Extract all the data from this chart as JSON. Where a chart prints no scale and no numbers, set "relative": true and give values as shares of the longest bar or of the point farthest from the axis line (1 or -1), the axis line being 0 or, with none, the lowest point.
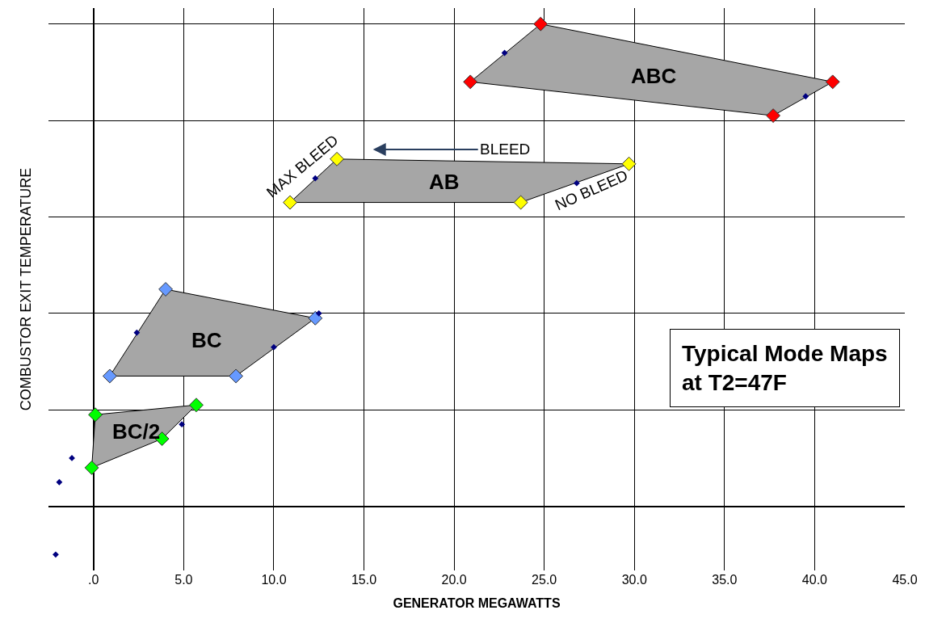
{
  "chart_data": {
    "type": "area",
    "relative": true,
    "xlabel": "GENERATOR MEGAWATTS",
    "ylabel": "COMBUSTOR EXIT TEMPERATURE",
    "xlim": [
      -2.5,
      45
    ],
    "xticks": [
      {
        "value": 0,
        "label": ".0"
      },
      {
        "value": 5,
        "label": "5.0"
      },
      {
        "value": 10,
        "label": "10.0"
      },
      {
        "value": 15,
        "label": "15.0"
      },
      {
        "value": 20,
        "label": "20.0"
      },
      {
        "value": 25,
        "label": "25.0"
      },
      {
        "value": 30,
        "label": "30.0"
      },
      {
        "value": 35,
        "label": "35.0"
      },
      {
        "value": 40,
        "label": "40.0"
      },
      {
        "value": 45,
        "label": "45.0"
      }
    ],
    "grid": true,
    "legend": false,
    "marker": "diamond",
    "series": [
      {
        "name": "ABC",
        "color": "#ff0000",
        "x": [
          20.9,
          24.8,
          41.0,
          37.7
        ],
        "values": [
          0.88,
          1.0,
          0.88,
          0.81
        ]
      },
      {
        "name": "AB",
        "color": "#ffff00",
        "x": [
          10.9,
          13.5,
          29.7,
          23.7
        ],
        "values": [
          0.63,
          0.72,
          0.71,
          0.63
        ]
      },
      {
        "name": "BC",
        "color": "#6699ff",
        "x": [
          0.9,
          4.0,
          12.3,
          7.9
        ],
        "values": [
          0.27,
          0.45,
          0.39,
          0.27
        ]
      },
      {
        "name": "BC/2",
        "color": "#00ff00",
        "x": [
          0.1,
          5.7,
          3.8,
          -0.1
        ],
        "values": [
          0.19,
          0.21,
          0.14,
          0.08
        ]
      },
      {
        "type": "scatter",
        "color": "#000080",
        "x": [
          -1.2,
          -1.9,
          -2.1,
          4.9,
          10.0,
          2.4,
          12.5,
          12.3,
          26.8,
          22.8,
          39.5
        ],
        "values": [
          0.1,
          0.05,
          -0.1,
          0.17,
          0.33,
          0.36,
          0.4,
          0.68,
          0.67,
          0.94,
          0.85
        ]
      }
    ],
    "annotations": [
      "BLEED",
      "MAX BLEED",
      "NO BLEED",
      "Typical Mode Maps\nat T2=47F"
    ]
  }
}
